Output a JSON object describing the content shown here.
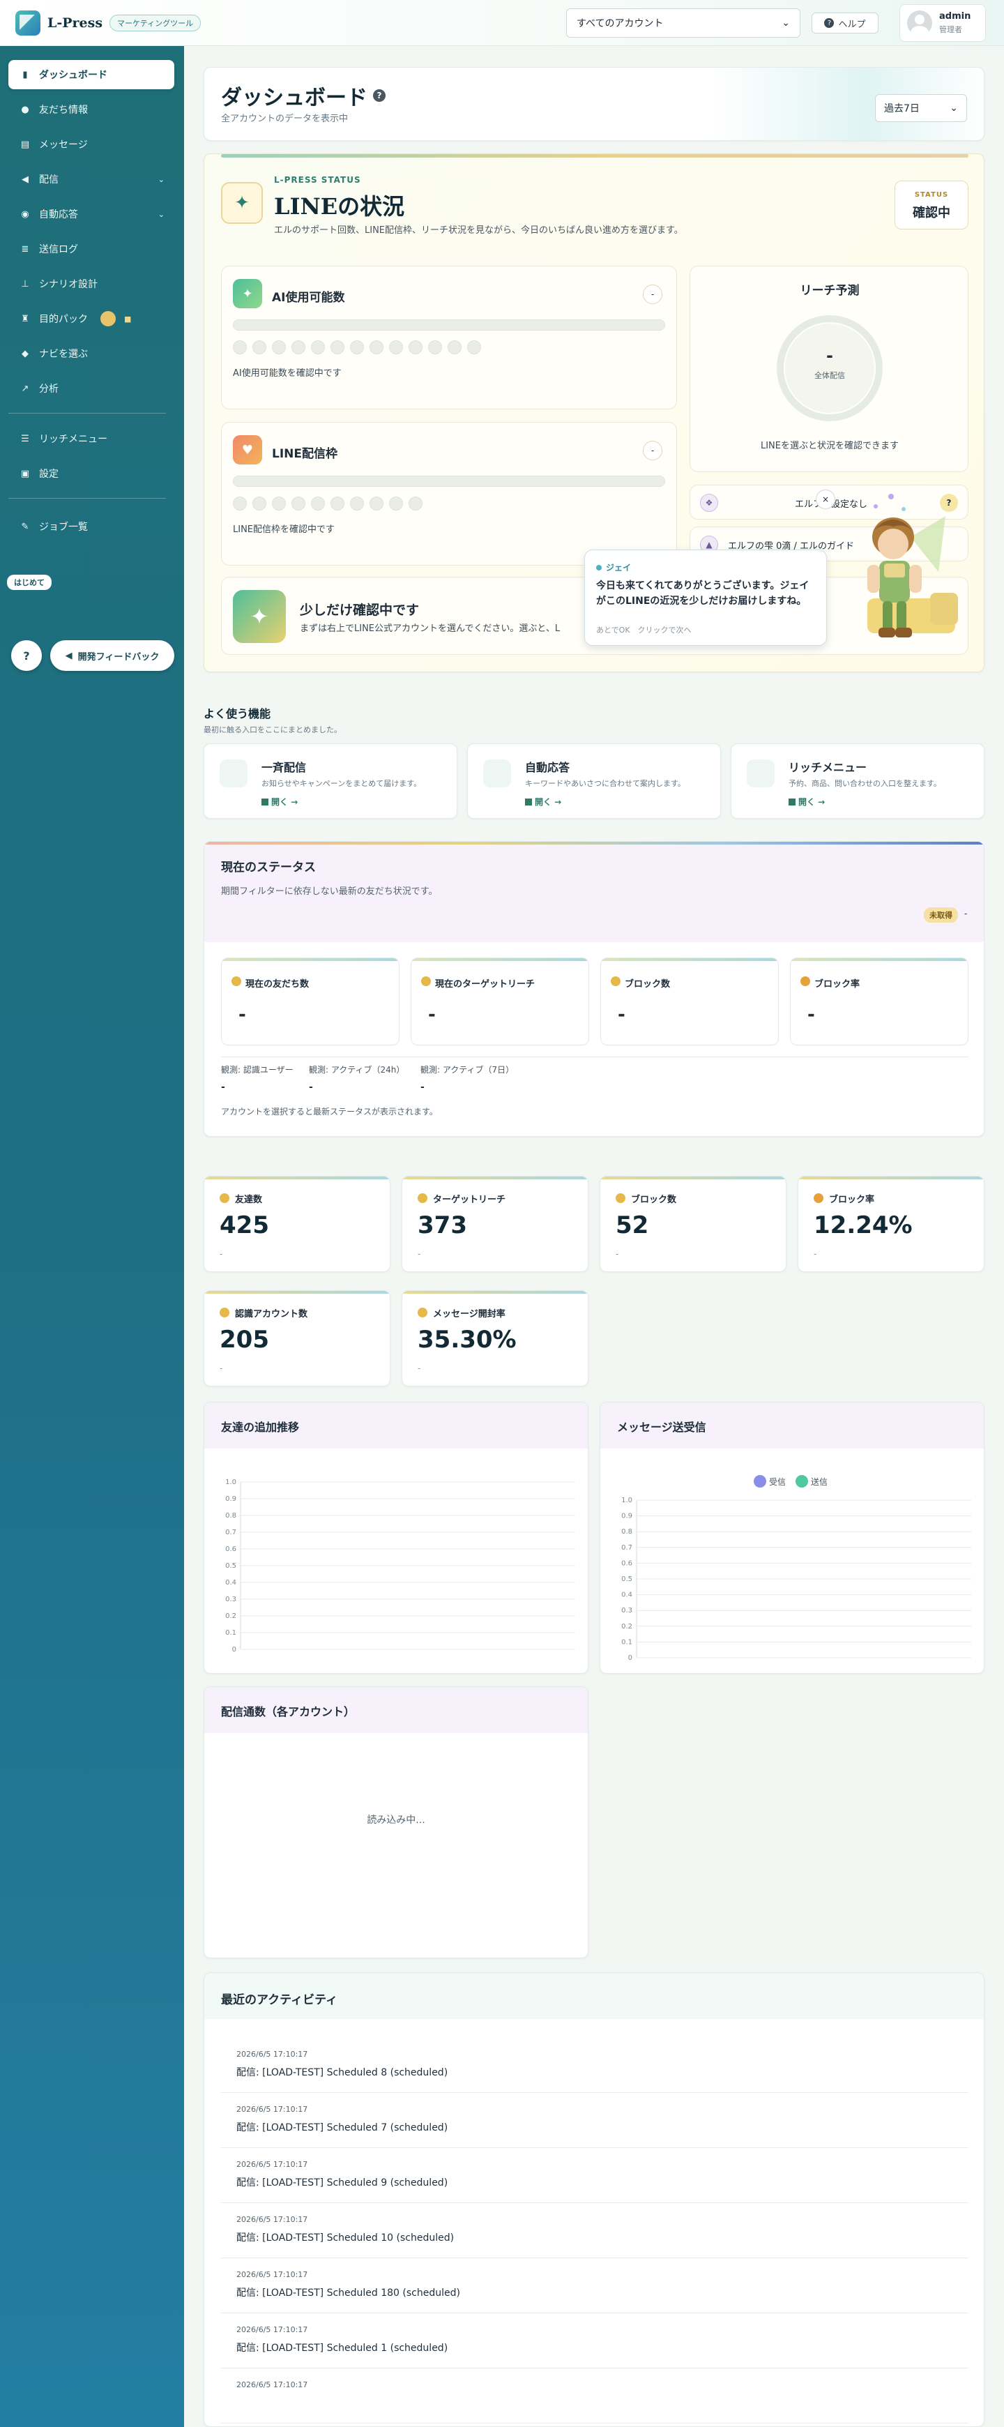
{
  "header": {
    "brand": "L-Press",
    "brand_tag": "マーケティングツール",
    "account_select": "すべてのアカウント",
    "help": "ヘルプ",
    "user_name": "admin",
    "user_role": "管理者"
  },
  "sidebar": {
    "items": [
      {
        "label": "ダッシュボード",
        "icon": "bar-chart-icon",
        "active": true
      },
      {
        "label": "友だち情報",
        "icon": "users-icon"
      },
      {
        "label": "メッセージ",
        "icon": "message-icon"
      },
      {
        "label": "配信",
        "icon": "megaphone-icon",
        "chevron": true
      },
      {
        "label": "自動応答",
        "icon": "eye-icon",
        "chevron": true
      },
      {
        "label": "送信ログ",
        "icon": "list-icon"
      },
      {
        "label": "シナリオ設計",
        "icon": "sitemap-icon"
      },
      {
        "label": "目的パック",
        "icon": "trophy-icon",
        "badge": true
      },
      {
        "label": "ナビを選ぶ",
        "icon": "chat-icon"
      },
      {
        "label": "分析",
        "icon": "analytics-icon"
      },
      {
        "label": "リッチメニュー",
        "icon": "menu-icon"
      },
      {
        "label": "設定",
        "icon": "image-icon"
      },
      {
        "label": "ジョブ一覧",
        "icon": "wrench-icon"
      }
    ],
    "start_tag": "はじめて",
    "help_q": "?",
    "feedback": "開発フィードバック"
  },
  "page": {
    "title": "ダッシュボード",
    "subtitle": "全アカウントのデータを表示中",
    "period": "過去7日"
  },
  "status": {
    "kicker": "L-PRESS STATUS",
    "title": "LINEの状況",
    "desc": "エルのサポート回数、LINE配信枠、リーチ状況を見ながら、今日のいちばん良い進め方を選びます。",
    "box_key": "STATUS",
    "box_value": "確認中",
    "ai_title": "AI使用可能数",
    "ai_note": "AI使用可能数を確認中です",
    "line_title": "LINE配信枠",
    "line_note": "LINE配信枠を確認中です",
    "mini": "-",
    "reach_title": "リーチ予測",
    "reach_value": "-",
    "reach_label": "全体配信",
    "reach_note": "LINEを選ぶと状況を確認できます",
    "elf1": "エルフ：設定なし",
    "elf1_q": "?",
    "elf2": "エルフの雫 0滴 / エルのガイド",
    "confirm_title": "少しだけ確認中です",
    "confirm_desc": "まずは右上でLINE公式アカウントを選んでください。選ぶと、L"
  },
  "bubble": {
    "name": "ジェイ",
    "text": "今日も来てくれてありがとうございます。ジェイがこのLINEの近況を少しだけお届けしますね。",
    "hint": "あとでOK　クリックで次へ",
    "close": "×"
  },
  "quick": {
    "title": "よく使う機能",
    "subtitle": "最初に触る入口をここにまとめました。",
    "items": [
      {
        "title": "一斉配信",
        "desc": "お知らせやキャンペーンをまとめて届けます。",
        "link": "開く →"
      },
      {
        "title": "自動応答",
        "desc": "キーワードやあいさつに合わせて案内します。",
        "link": "開く →"
      },
      {
        "title": "リッチメニュー",
        "desc": "予約、商品、問い合わせの入口を整えます。",
        "link": "開く →"
      }
    ]
  },
  "current_status": {
    "title": "現在のステータス",
    "desc": "期間フィルターに依存しない最新の友だち状況です。",
    "pill": "未取得",
    "pill_dash": "-",
    "kpis": [
      {
        "label": "現在の友だち数",
        "value": "-",
        "color": "#e6b84a"
      },
      {
        "label": "現在のターゲットリーチ",
        "value": "-",
        "color": "#e6b84a"
      },
      {
        "label": "ブロック数",
        "value": "-",
        "color": "#e6b84a"
      },
      {
        "label": "ブロック率",
        "value": "-",
        "color": "#e6a23a"
      }
    ],
    "observations": [
      {
        "label": "観測: 認識ユーザー",
        "value": "-"
      },
      {
        "label": "観測: アクティブ（24h）",
        "value": "-"
      },
      {
        "label": "観測: アクティブ（7日）",
        "value": "-"
      }
    ],
    "footer": "アカウントを選択すると最新ステータスが表示されます。"
  },
  "stats": [
    {
      "label": "友達数",
      "value": "425",
      "sub": "-",
      "color": "#e6b84a"
    },
    {
      "label": "ターゲットリーチ",
      "value": "373",
      "sub": "-",
      "color": "#e6b84a"
    },
    {
      "label": "ブロック数",
      "value": "52",
      "sub": "-",
      "color": "#e6b84a"
    },
    {
      "label": "ブロック率",
      "value": "12.24%",
      "sub": "-",
      "color": "#e6a23a"
    },
    {
      "label": "認識アカウント数",
      "value": "205",
      "sub": "-",
      "color": "#e6b84a"
    },
    {
      "label": "メッセージ開封率",
      "value": "35.30%",
      "sub": "-",
      "color": "#e6b84a"
    }
  ],
  "chart_data": [
    {
      "type": "line",
      "title": "友達の追加推移",
      "ylim": [
        0,
        1.0
      ],
      "yticks": [
        "0",
        "0.1",
        "0.2",
        "0.3",
        "0.4",
        "0.5",
        "0.6",
        "0.7",
        "0.8",
        "0.9",
        "1.0"
      ],
      "x": [],
      "series": []
    },
    {
      "type": "line",
      "title": "メッセージ送受信",
      "ylim": [
        0,
        1.0
      ],
      "yticks": [
        "0",
        "0.1",
        "0.2",
        "0.3",
        "0.4",
        "0.5",
        "0.6",
        "0.7",
        "0.8",
        "0.9",
        "1.0"
      ],
      "legend": [
        {
          "name": "受信",
          "color": "#8a8ee6"
        },
        {
          "name": "送信",
          "color": "#4fc9a0"
        }
      ],
      "x": [],
      "series": [
        {
          "name": "受信",
          "values": []
        },
        {
          "name": "送信",
          "values": []
        }
      ]
    }
  ],
  "delivery": {
    "title": "配信通数（各アカウント）",
    "loading": "読み込み中..."
  },
  "activity": {
    "title": "最近のアクティビティ",
    "items": [
      {
        "time": "2026/6/5 17:10:17",
        "text": "配信: [LOAD-TEST] Scheduled 8 (scheduled)"
      },
      {
        "time": "2026/6/5 17:10:17",
        "text": "配信: [LOAD-TEST] Scheduled 7 (scheduled)"
      },
      {
        "time": "2026/6/5 17:10:17",
        "text": "配信: [LOAD-TEST] Scheduled 9 (scheduled)"
      },
      {
        "time": "2026/6/5 17:10:17",
        "text": "配信: [LOAD-TEST] Scheduled 10 (scheduled)"
      },
      {
        "time": "2026/6/5 17:10:17",
        "text": "配信: [LOAD-TEST] Scheduled 180 (scheduled)"
      },
      {
        "time": "2026/6/5 17:10:17",
        "text": "配信: [LOAD-TEST] Scheduled 1 (scheduled)"
      },
      {
        "time": "2026/6/5 17:10:17",
        "text": ""
      }
    ]
  }
}
